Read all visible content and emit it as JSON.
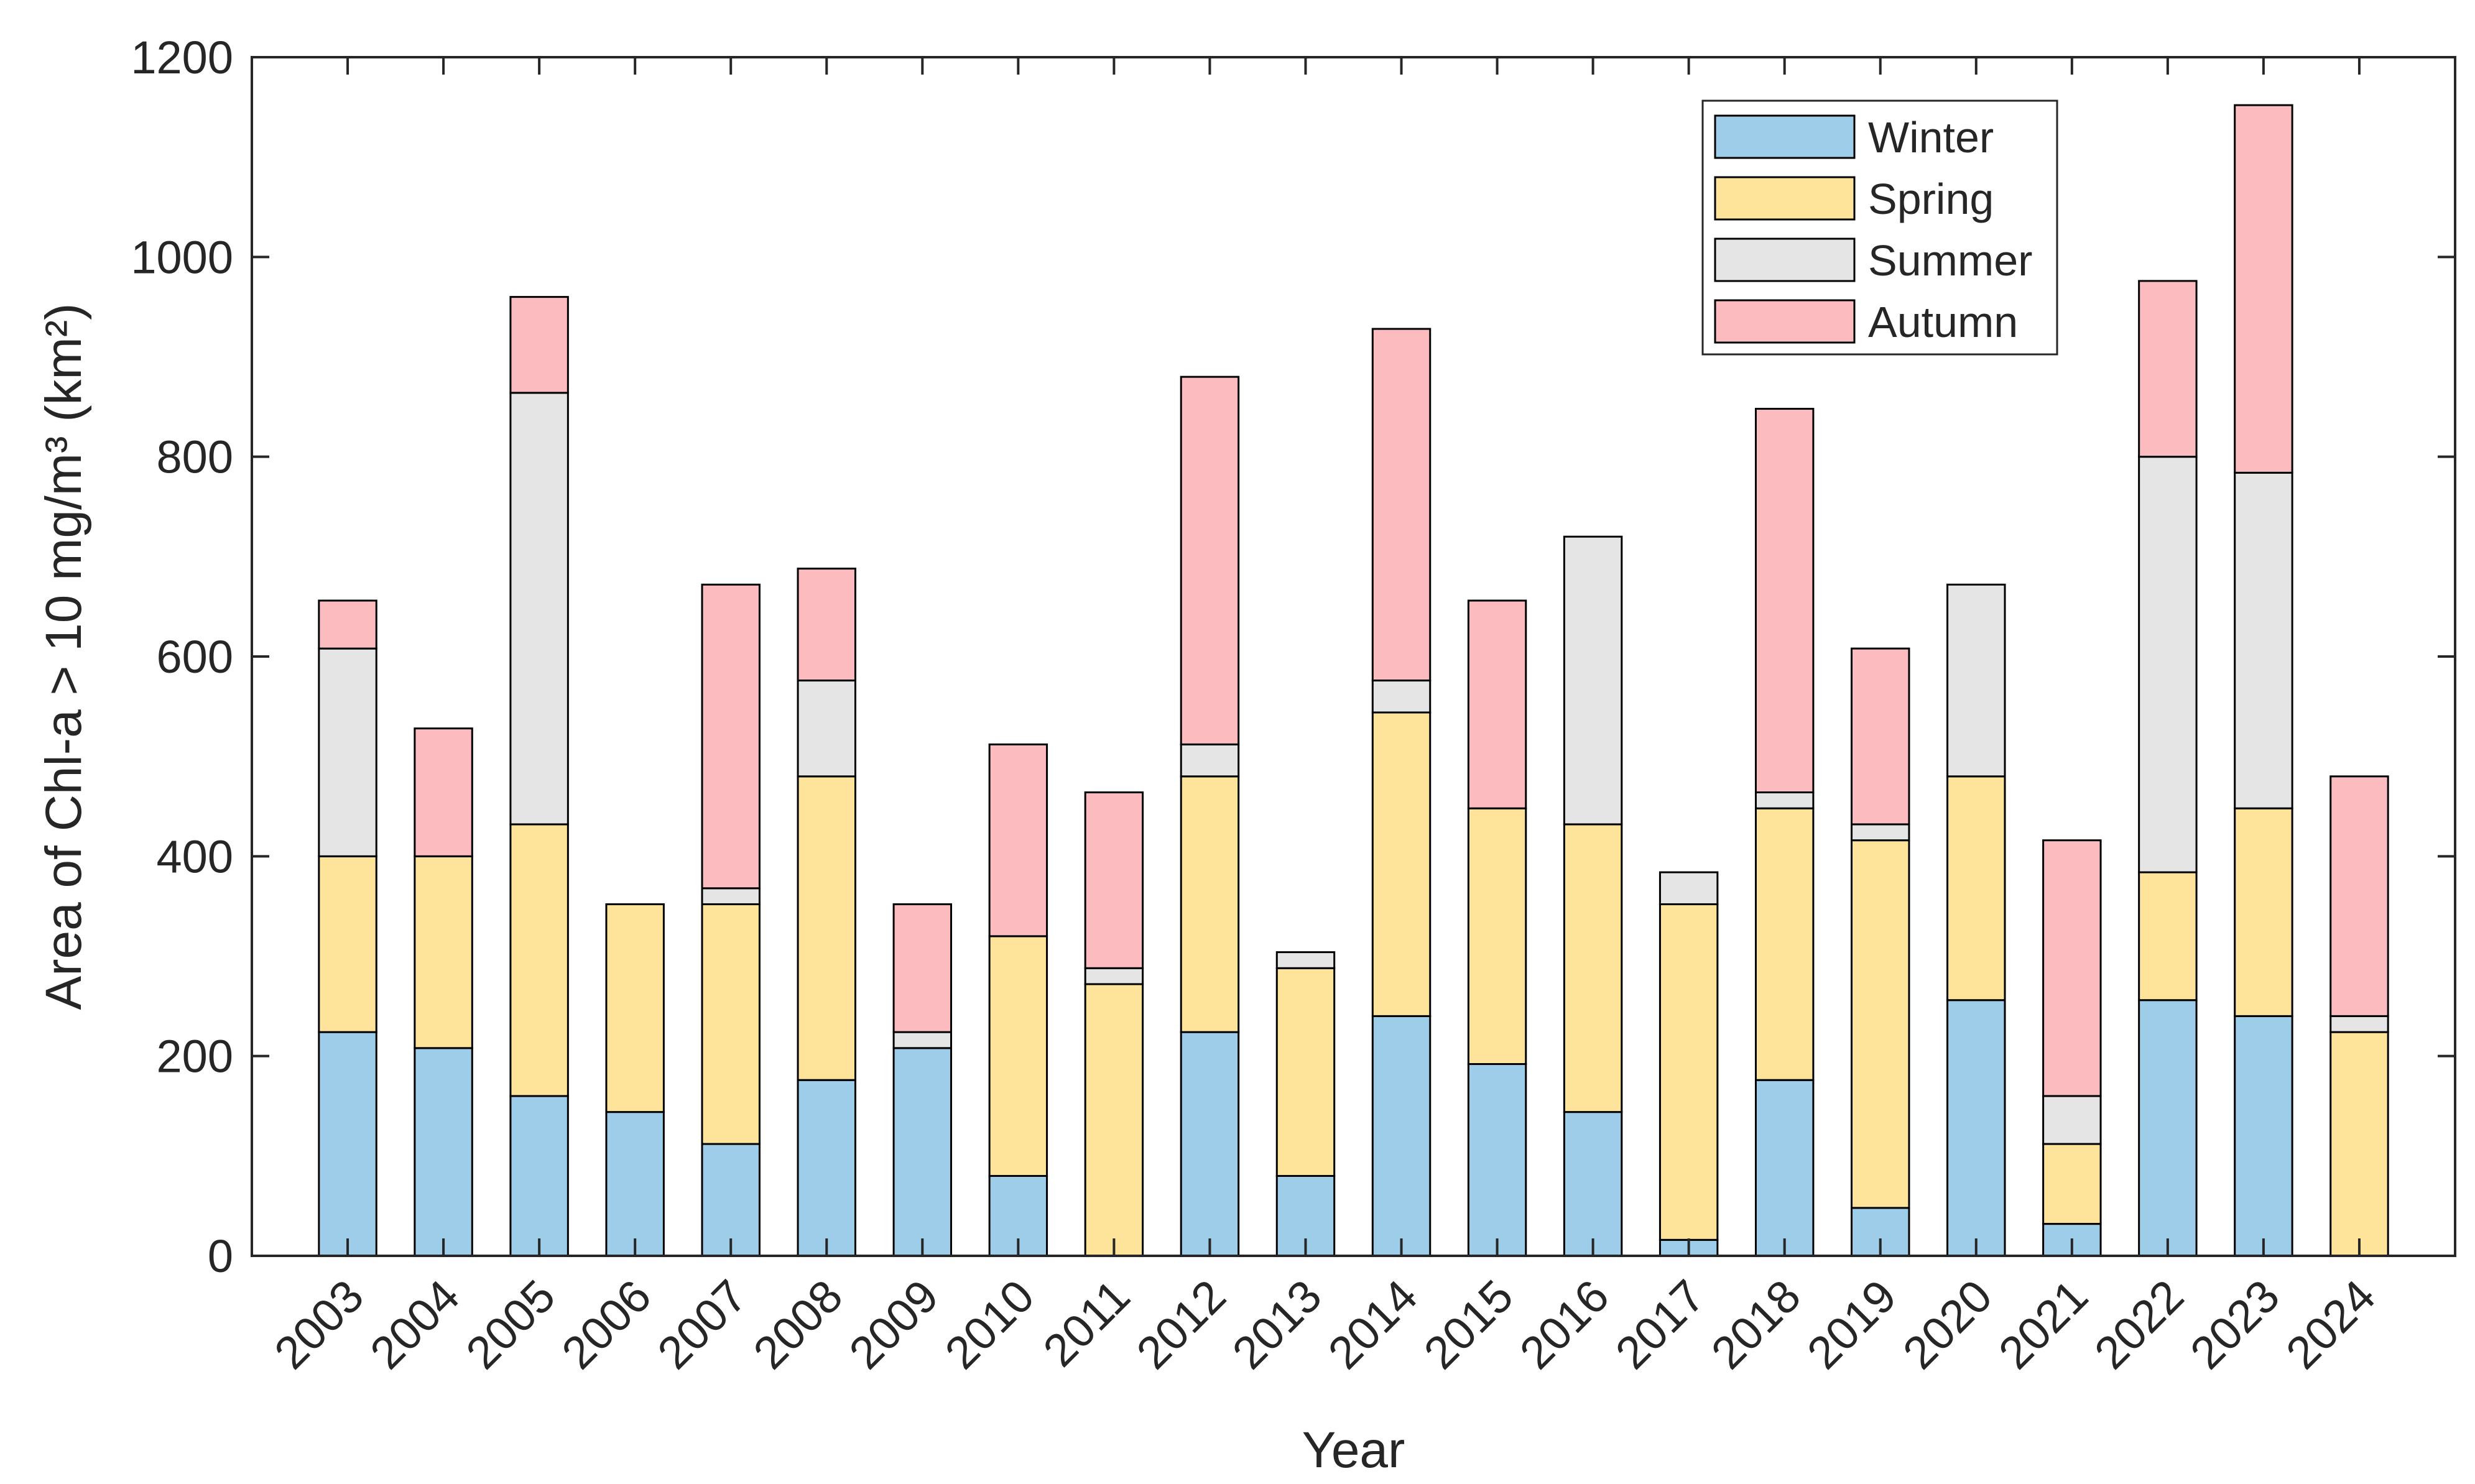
{
  "chart_data": {
    "type": "bar",
    "stacked": true,
    "title": "",
    "xlabel": "Year",
    "ylabel": "Area of Chl-a > 10 mg/m³ (km²)",
    "ylim": [
      0,
      1200
    ],
    "yticks": [
      0,
      200,
      400,
      600,
      800,
      1000,
      1200
    ],
    "categories": [
      "2003",
      "2004",
      "2005",
      "2006",
      "2007",
      "2008",
      "2009",
      "2010",
      "2011",
      "2012",
      "2013",
      "2014",
      "2015",
      "2016",
      "2017",
      "2018",
      "2019",
      "2020",
      "2021",
      "2022",
      "2023",
      "2024"
    ],
    "legend_position": "top-right",
    "series": [
      {
        "name": "Winter",
        "color": "#9ecde9",
        "values": [
          224,
          208,
          160,
          144,
          112,
          176,
          208,
          80,
          0,
          224,
          80,
          240,
          192,
          144,
          16,
          176,
          48,
          256,
          32,
          256,
          240,
          0
        ]
      },
      {
        "name": "Spring",
        "color": "#fde49a",
        "values": [
          176,
          192,
          272,
          208,
          240,
          304,
          0,
          240,
          272,
          256,
          208,
          304,
          256,
          288,
          336,
          272,
          368,
          224,
          80,
          128,
          208,
          224
        ]
      },
      {
        "name": "Summer",
        "color": "#e5e5e5",
        "values": [
          208,
          0,
          432,
          0,
          16,
          96,
          16,
          0,
          16,
          32,
          16,
          32,
          0,
          288,
          32,
          16,
          16,
          192,
          48,
          416,
          336,
          16
        ]
      },
      {
        "name": "Autumn",
        "color": "#fcbcbf",
        "values": [
          48,
          128,
          96,
          0,
          304,
          112,
          128,
          192,
          176,
          368,
          0,
          352,
          208,
          0,
          0,
          384,
          176,
          0,
          256,
          176,
          368,
          240
        ]
      }
    ]
  }
}
